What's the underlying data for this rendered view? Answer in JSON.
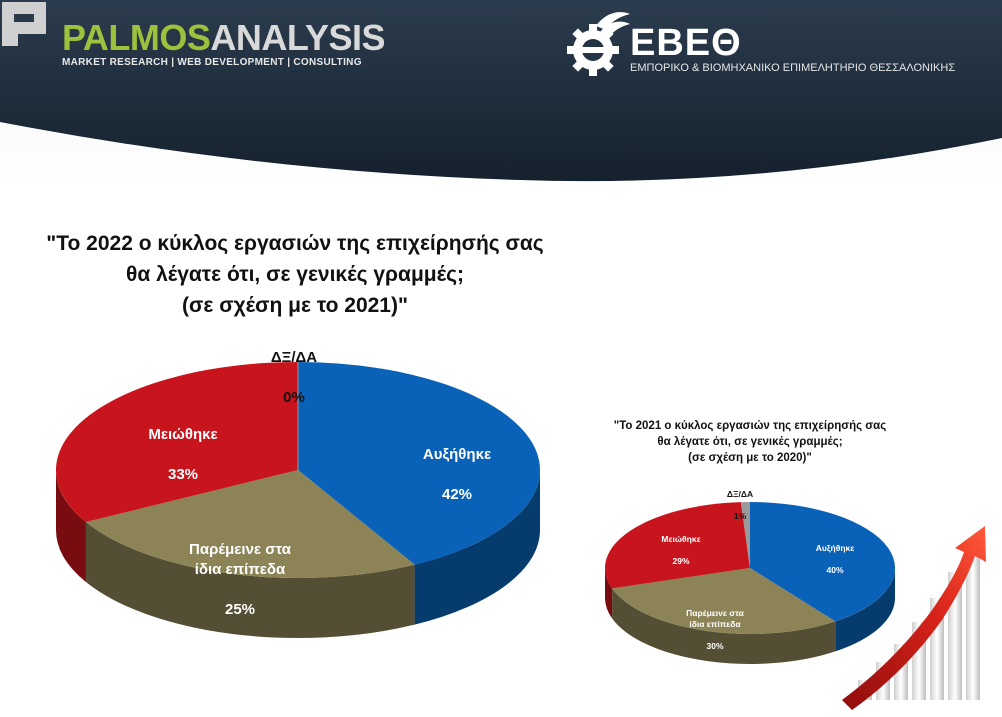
{
  "header": {
    "palmos": {
      "part1": "PALMOS",
      "part2": "ANALYSIS",
      "tagline": "MARKET RESEARCH | WEB DEVELOPMENT | CONSULTING"
    },
    "ebeth": {
      "title": "ΕΒΕΘ",
      "subtitle": "ΕΜΠΟΡΙΚΟ & ΒΙΟΜΗΧΑΝΙΚΟ ΕΠΙΜΕΛΗΤΗΡΙΟ ΘΕΣΣΑΛΟΝΙΚΗΣ"
    }
  },
  "colors": {
    "increase": "#0a62b8",
    "decrease": "#c8141c",
    "same": "#8c8457",
    "dk": "#9a9a9a",
    "header_dark": "#1c2a38"
  },
  "chart_data": [
    {
      "type": "pie",
      "title": "\"Το 2022 ο κύκλος εργασιών της επιχείρησής σας\nθα λέγατε ότι, σε γενικές γραμμές;\n(σε σχέση με το 2021)\"",
      "slices": [
        {
          "label": "Αυξήθηκε",
          "value": 42,
          "value_label": "42%"
        },
        {
          "label": "Παρέμεινε στα\nίδια επίπεδα",
          "value": 25,
          "value_label": "25%"
        },
        {
          "label": "Μειώθηκε",
          "value": 33,
          "value_label": "33%"
        },
        {
          "label": "ΔΞ/ΔΑ",
          "value": 0,
          "value_label": "0%"
        }
      ]
    },
    {
      "type": "pie",
      "title": "\"Το 2021 ο κύκλος εργασιών της επιχείρησής σας\nθα λέγατε ότι, σε γενικές γραμμές;\n(σε σχέση με το 2020)\"",
      "slices": [
        {
          "label": "Αυξήθηκε",
          "value": 40,
          "value_label": "40%"
        },
        {
          "label": "Παρέμεινε στα\nίδια επίπεδα",
          "value": 30,
          "value_label": "30%"
        },
        {
          "label": "Μειώθηκε",
          "value": 29,
          "value_label": "29%"
        },
        {
          "label": "ΔΞ/ΔΑ",
          "value": 1,
          "value_label": "1%"
        }
      ]
    }
  ]
}
